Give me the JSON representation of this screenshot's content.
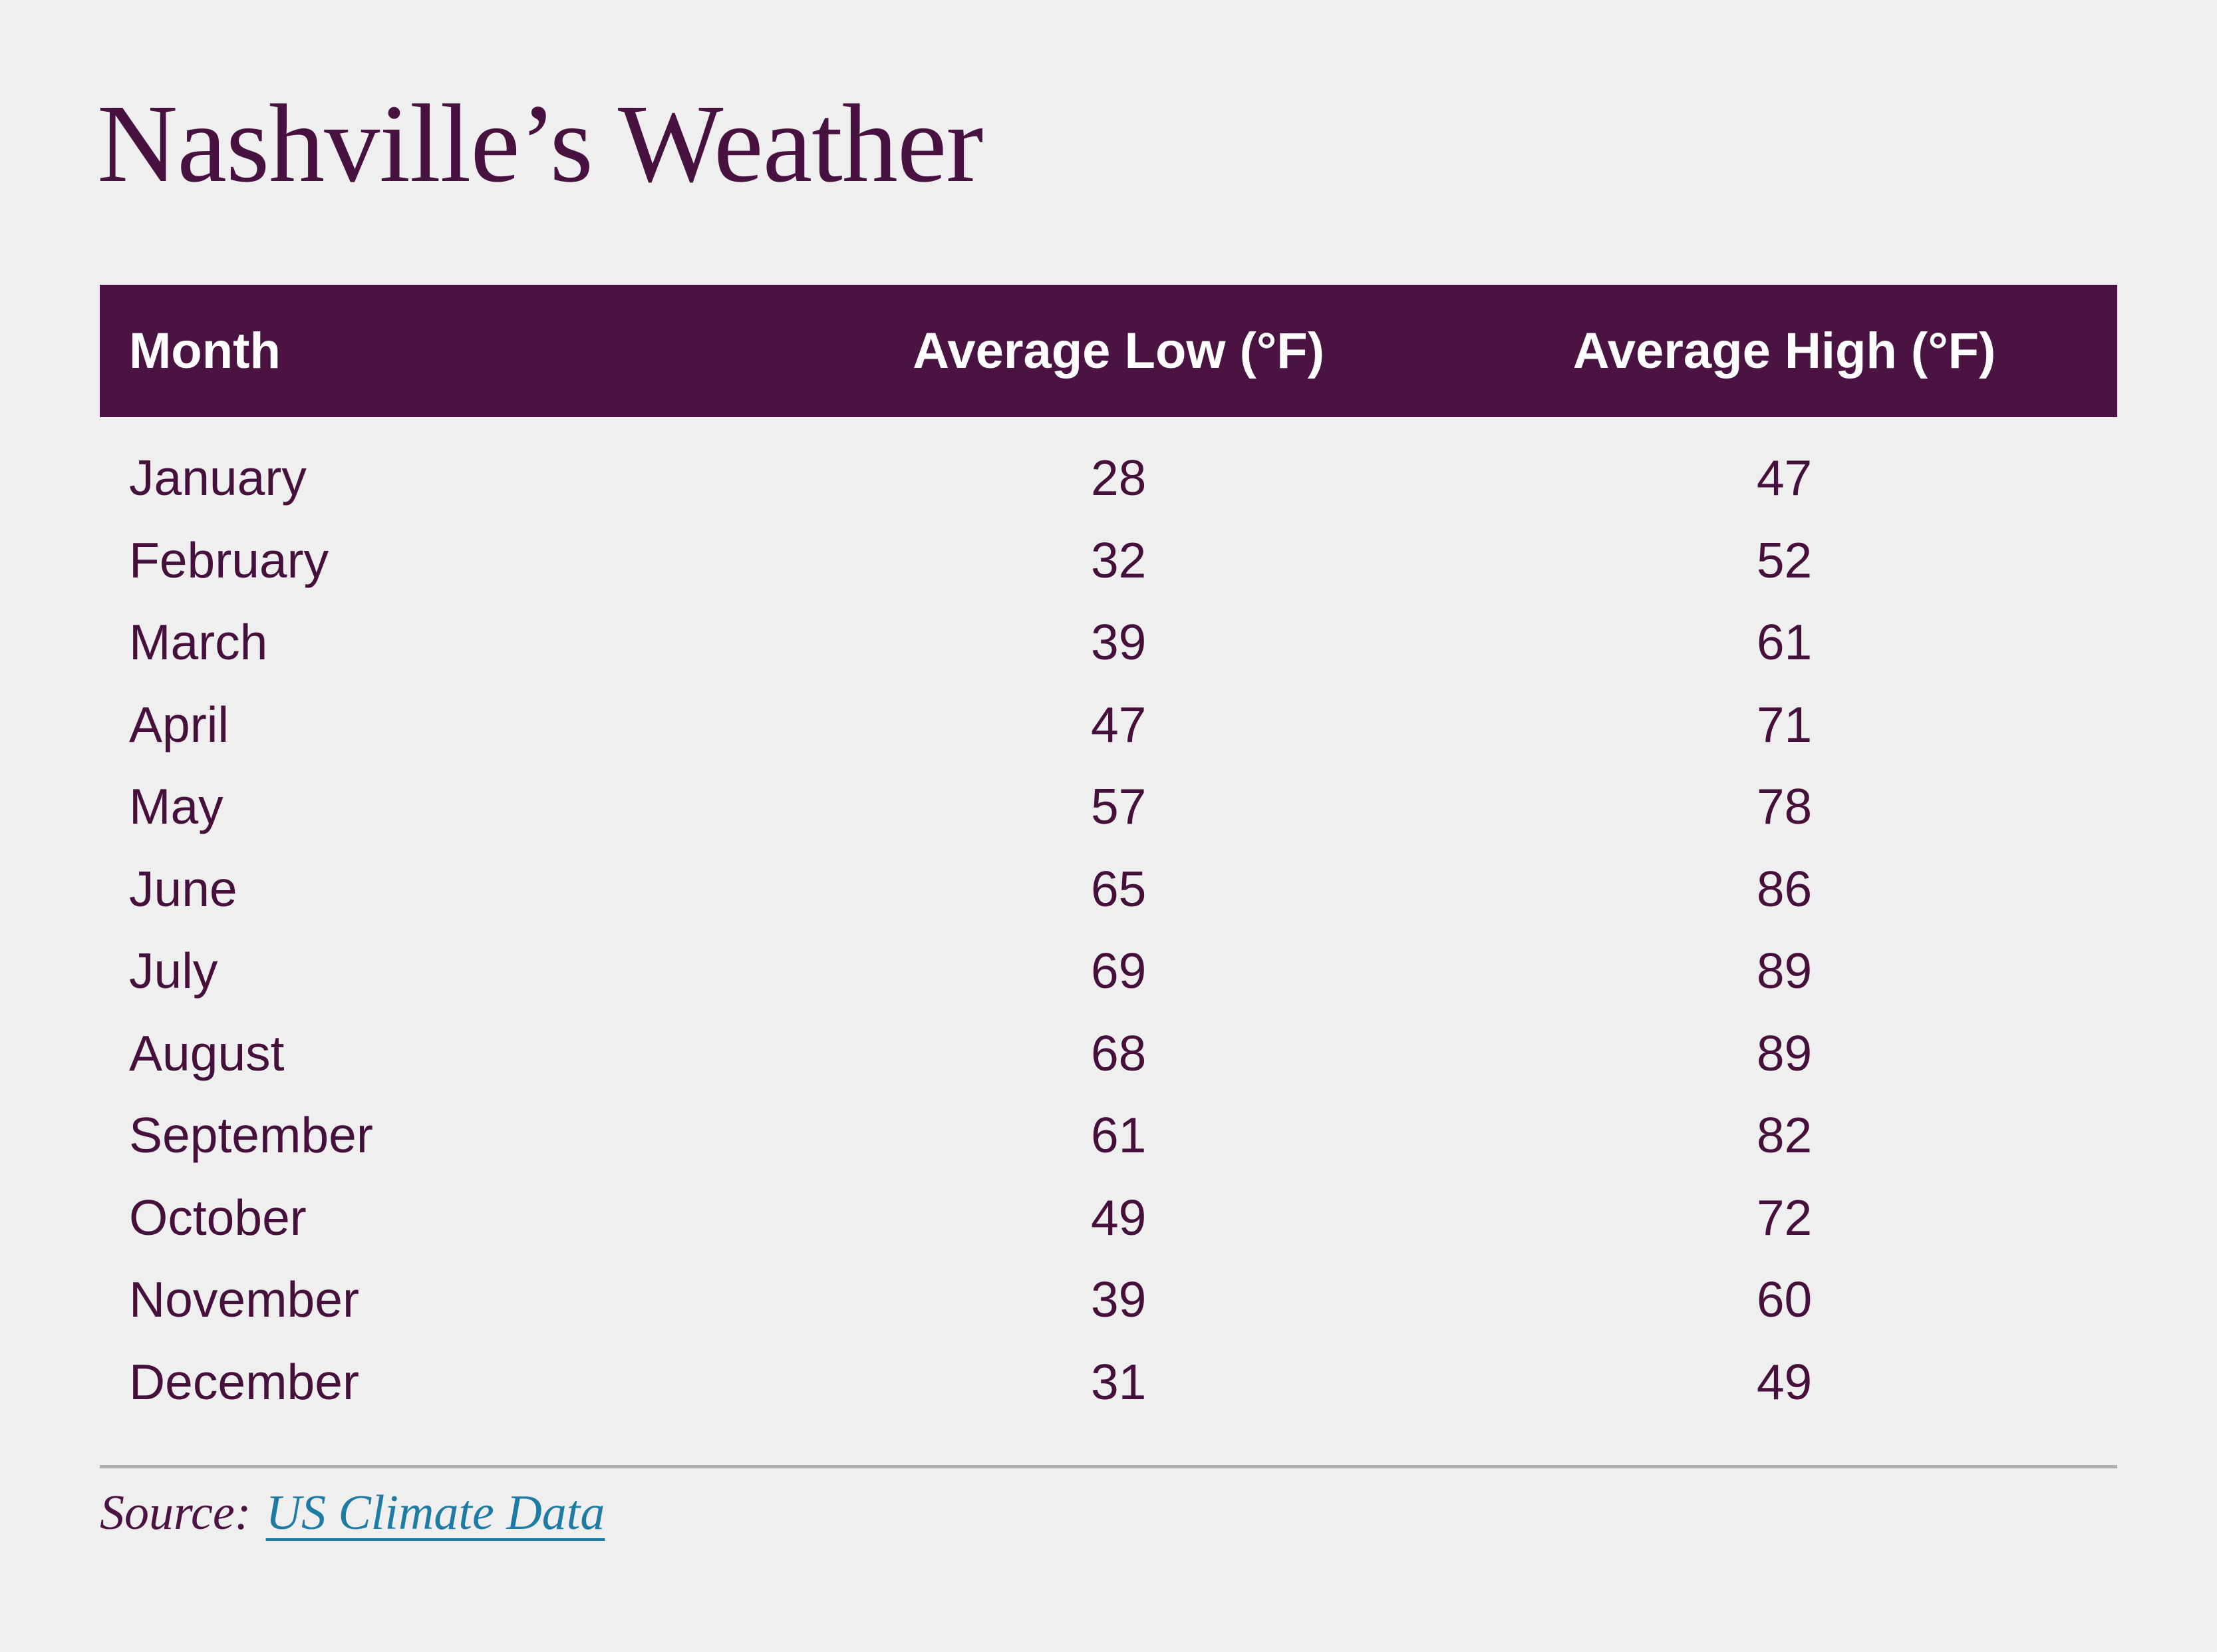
{
  "chart_data": {
    "type": "table",
    "title": "Nashville’s Weather",
    "columns": [
      "Month",
      "Average Low (°F)",
      "Average High (°F)"
    ],
    "rows": [
      [
        "January",
        28,
        47
      ],
      [
        "February",
        32,
        52
      ],
      [
        "March",
        39,
        61
      ],
      [
        "April",
        47,
        71
      ],
      [
        "May",
        57,
        78
      ],
      [
        "June",
        65,
        86
      ],
      [
        "July",
        69,
        89
      ],
      [
        "August",
        68,
        89
      ],
      [
        "September",
        61,
        82
      ],
      [
        "October",
        49,
        72
      ],
      [
        "November",
        39,
        60
      ],
      [
        "December",
        31,
        49
      ]
    ],
    "source": "US Climate Data",
    "legend_position": "none",
    "grid": false
  },
  "source": {
    "label": "Source:"
  },
  "colors": {
    "background": "#f0eff0",
    "plum": "#4a1342",
    "title_plum": "#471140",
    "row_text": "#45113c",
    "header_text": "#ffffff",
    "link_teal": "#1e7ca4",
    "divider_gray": "#b0afb0"
  }
}
